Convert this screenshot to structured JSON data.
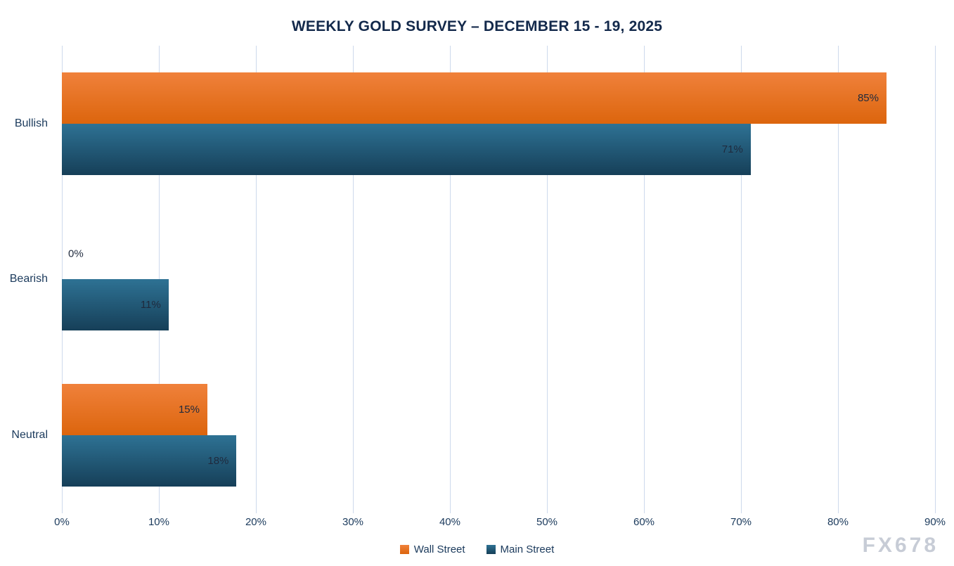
{
  "title": "WEEKLY GOLD SURVEY – DECEMBER 15 - 19, 2025",
  "watermark": "FX678",
  "chart_data": {
    "type": "bar",
    "orientation": "horizontal",
    "title": "WEEKLY GOLD SURVEY – DECEMBER 15 - 19, 2025",
    "categories": [
      "Bullish",
      "Bearish",
      "Neutral"
    ],
    "series": [
      {
        "name": "Wall Street",
        "color_top": "#F0813B",
        "color_bottom": "#DC650D",
        "values": [
          85,
          0,
          15
        ]
      },
      {
        "name": "Main Street",
        "color_top": "#2E7294",
        "color_bottom": "#163F58",
        "values": [
          71,
          11,
          18
        ]
      }
    ],
    "xlim": [
      0,
      90
    ],
    "tick_step": 10,
    "tick_labels": [
      "0%",
      "10%",
      "20%",
      "30%",
      "40%",
      "50%",
      "60%",
      "70%",
      "80%",
      "90%"
    ],
    "data_labels": [
      [
        "85%",
        "0%",
        "15%"
      ],
      [
        "71%",
        "11%",
        "18%"
      ]
    ],
    "grid": true,
    "grid_color": "#cdd9ec",
    "legend_position": "bottom",
    "legend_entries": [
      "Wall Street",
      "Main Street"
    ],
    "xlabel": "",
    "ylabel": ""
  }
}
